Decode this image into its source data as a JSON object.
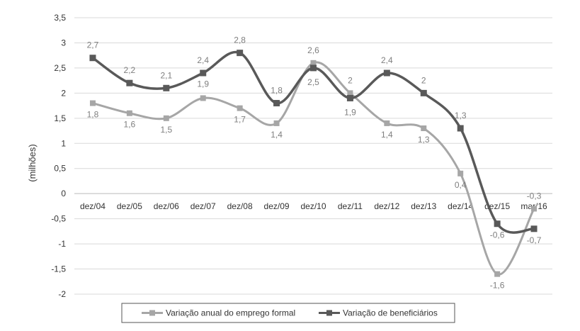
{
  "chart_data": {
    "type": "line",
    "ylabel": "(milhões)",
    "xlabel": "",
    "categories": [
      "dez/04",
      "dez/05",
      "dez/06",
      "dez/07",
      "dez/08",
      "dez/09",
      "dez/10",
      "dez/11",
      "dez/12",
      "dez/13",
      "dez/14",
      "dez/15",
      "mar/16"
    ],
    "ylim": [
      -2,
      3.5
    ],
    "yticks": [
      "-2",
      "-1,5",
      "-1",
      "-0,5",
      "0",
      "0,5",
      "1",
      "1,5",
      "2",
      "2,5",
      "3",
      "3,5"
    ],
    "ytick_values": [
      -2,
      -1.5,
      -1,
      -0.5,
      0,
      0.5,
      1,
      1.5,
      2,
      2.5,
      3,
      3.5
    ],
    "grid": true,
    "legend_position": "bottom",
    "series": [
      {
        "name": "Variação anual do emprego formal",
        "values": [
          1.8,
          1.6,
          1.5,
          1.9,
          1.7,
          1.4,
          2.6,
          2.0,
          1.4,
          1.3,
          0.4,
          -1.6,
          -0.3
        ],
        "labels": [
          "1,8",
          "1,6",
          "1,5",
          "1,9",
          "1,7",
          "1,4",
          "2,6",
          "2",
          "1,4",
          "1,3",
          "0,4",
          "-1,6",
          "-0,3"
        ],
        "color": "#a6a6a6"
      },
      {
        "name": "Variação de beneficiários",
        "values": [
          2.7,
          2.2,
          2.1,
          2.4,
          2.8,
          1.8,
          2.5,
          1.9,
          2.4,
          2.0,
          1.3,
          -0.6,
          -0.7
        ],
        "labels": [
          "2,7",
          "2,2",
          "2,1",
          "2,4",
          "2,8",
          "1,8",
          "2,5",
          "1,9",
          "2,4",
          "2",
          "1,3",
          "-0,6",
          "-0,7"
        ],
        "color": "#595959"
      }
    ]
  }
}
